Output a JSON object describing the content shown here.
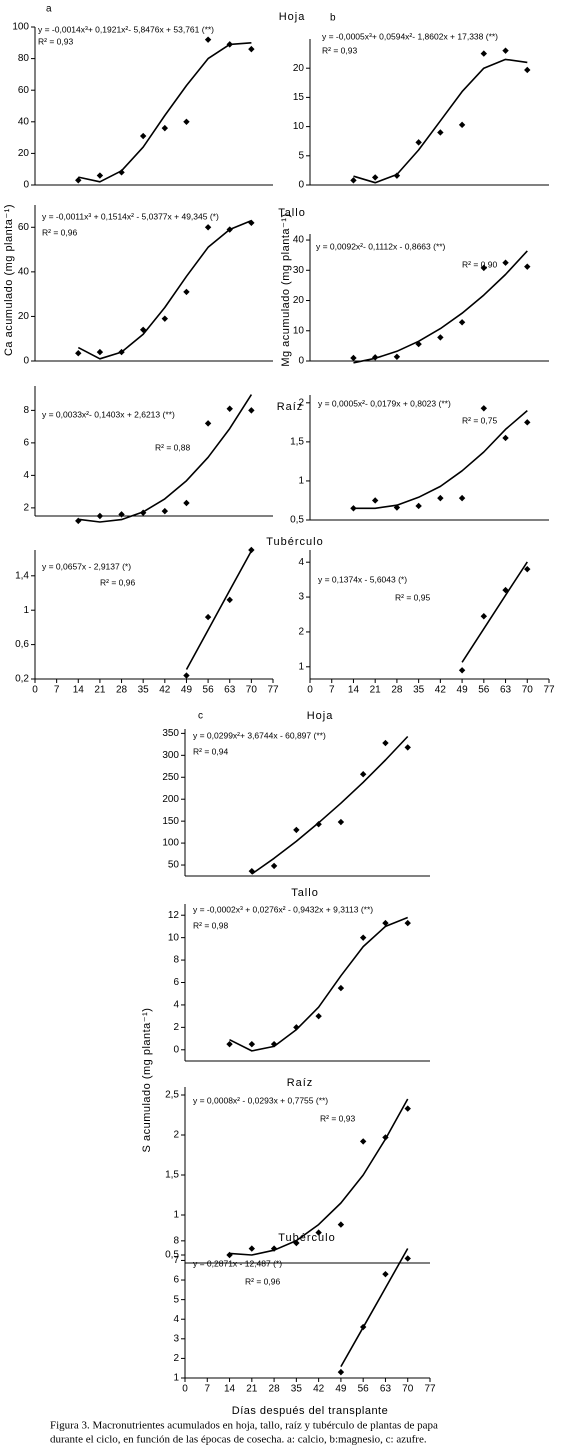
{
  "panel_labels": {
    "a": "a",
    "b": "b",
    "c": "c"
  },
  "y_axis_labels": [
    "Ca acumulado (mg planta⁻¹)",
    "Mg acumulado (mg planta⁻¹)",
    "S acumulado (mg planta⁻¹)"
  ],
  "x_axis_label": "Días después del transplante",
  "caption": [
    "Figura 3. Macronutrientes acumulados en hoja, tallo, raíz y tubérculo de plantas de papa",
    "durante el ciclo, en función de las épocas de cosecha. a: calcio, b:magnesio, c: azufre."
  ],
  "chart_data": [
    {
      "type": "scatter",
      "title": "Hoja",
      "x": [
        14,
        21,
        28,
        35,
        42,
        49,
        56,
        63,
        70
      ],
      "values": [
        3,
        6,
        8,
        31,
        36,
        40,
        92,
        89,
        86
      ],
      "fit": {
        "values": [
          5,
          2,
          9,
          24,
          44,
          63,
          80,
          89,
          90
        ]
      },
      "color": "#000000",
      "xlim": [
        0,
        77
      ],
      "ylim": [
        0,
        100
      ],
      "yticks": [
        0,
        20,
        40,
        60,
        80,
        100
      ],
      "equation": "y = -0,0014x³+ 0,1921x²- 5,8476x + 53,761 (**)",
      "r2": "R² = 0,93"
    },
    {
      "type": "scatter",
      "x": [
        14,
        21,
        28,
        35,
        42,
        49,
        56,
        63,
        70
      ],
      "values": [
        0.8,
        1.3,
        1.6,
        7.3,
        9,
        10.3,
        22.5,
        23,
        19.7
      ],
      "fit": {
        "values": [
          1.5,
          0.4,
          1.8,
          6,
          11,
          16,
          20,
          21.5,
          21
        ]
      },
      "color": "#000000",
      "xlim": [
        0,
        77
      ],
      "ylim": [
        0,
        25
      ],
      "yticks": [
        0,
        5,
        10,
        15,
        20
      ],
      "equation": "y = -0,0005x³+ 0,0594x²- 1,8602x + 17,338 (**)",
      "r2": "R² = 0,93"
    },
    {
      "type": "scatter",
      "title": "Tallo",
      "x": [
        14,
        21,
        28,
        35,
        42,
        49,
        56,
        63,
        70
      ],
      "values": [
        3.5,
        4,
        4,
        14,
        19,
        31,
        60,
        59,
        62
      ],
      "fit": {
        "values": [
          6,
          1,
          4,
          12,
          24,
          38,
          51,
          59,
          63
        ]
      },
      "color": "#000000",
      "xlim": [
        0,
        77
      ],
      "ylim": [
        0,
        70
      ],
      "yticks": [
        0,
        20,
        40,
        60
      ],
      "equation": "y = -0,0011x³ + 0,1514x² - 5,0377x + 49,345 (*)",
      "r2": "R² = 0,96"
    },
    {
      "type": "scatter",
      "x": [
        14,
        21,
        28,
        35,
        42,
        49,
        56,
        63,
        70
      ],
      "values": [
        1,
        1.2,
        1.4,
        5.6,
        7.8,
        12.8,
        30.8,
        32.5,
        31.2
      ],
      "fit": {
        "values": [
          -0.6,
          0.9,
          3.2,
          6.5,
          10.7,
          15.8,
          21.8,
          28.6,
          36.4
        ]
      },
      "color": "#000000",
      "xlim": [
        0,
        77
      ],
      "ylim": [
        0,
        42
      ],
      "yticks": [
        0,
        10,
        20,
        30,
        40
      ],
      "equation": "y = 0,0092x²- 0,1112x - 0,8663 (**)",
      "r2": "R² = 0,90"
    },
    {
      "type": "scatter",
      "title": "Raíz",
      "x": [
        14,
        21,
        28,
        35,
        42,
        49,
        56,
        63,
        70
      ],
      "values": [
        1.2,
        1.5,
        1.6,
        1.7,
        1.8,
        2.3,
        7.2,
        8.1,
        8
      ],
      "fit": {
        "values": [
          1.3,
          1.13,
          1.28,
          1.75,
          2.55,
          3.67,
          5.11,
          6.88,
          8.97
        ]
      },
      "color": "#000000",
      "xlim": [
        0,
        77
      ],
      "ylim": [
        1.5,
        9.5
      ],
      "yticks": [
        2,
        4,
        6,
        8
      ],
      "equation": "y = 0,0033x²- 0,1403x + 2,6213 (**)",
      "r2": "R² = 0,88"
    },
    {
      "type": "scatter",
      "x": [
        14,
        21,
        28,
        35,
        42,
        49,
        56,
        63,
        70
      ],
      "values": [
        0.65,
        0.75,
        0.66,
        0.68,
        0.78,
        0.78,
        1.93,
        1.55,
        1.75
      ],
      "fit": {
        "values": [
          0.65,
          0.65,
          0.69,
          0.79,
          0.93,
          1.13,
          1.37,
          1.66,
          1.9
        ]
      },
      "color": "#000000",
      "xlim": [
        0,
        77
      ],
      "ylim": [
        0.5,
        2.1
      ],
      "yticks": [
        {
          "value": 0.5,
          "label": "0,5"
        },
        1,
        {
          "value": 1.5,
          "label": "1,5"
        },
        2
      ],
      "equation": "y = 0,0005x²- 0,0179x + 0,8023 (**)",
      "r2": "R² = 0,75"
    },
    {
      "type": "scatter",
      "title": "Tubérculo",
      "x": [
        49,
        56,
        63,
        70
      ],
      "values": [
        0.24,
        0.92,
        1.12,
        1.7
      ],
      "fit": {
        "values": [
          0.31,
          0.77,
          1.23,
          1.69
        ]
      },
      "color": "#000000",
      "xlim": [
        0,
        77
      ],
      "ylim": [
        0.2,
        1.7
      ],
      "yticks": [
        {
          "value": 0.2,
          "label": "0,2"
        },
        {
          "value": 0.6,
          "label": "0,6"
        },
        1,
        {
          "value": 1.4,
          "label": "1,4"
        }
      ],
      "xticks": [
        0,
        7,
        14,
        21,
        28,
        35,
        42,
        49,
        56,
        63,
        70,
        77
      ],
      "equation": "y = 0,0657x - 2,9137 (*)",
      "r2": "R² = 0,96"
    },
    {
      "type": "scatter",
      "x": [
        49,
        56,
        63,
        70
      ],
      "values": [
        0.9,
        2.45,
        3.2,
        3.8
      ],
      "fit": {
        "values": [
          1.13,
          2.09,
          3.05,
          4.01
        ]
      },
      "color": "#000000",
      "xlim": [
        0,
        77
      ],
      "ylim": [
        0.65,
        4.35
      ],
      "yticks": [
        1,
        2,
        3,
        4
      ],
      "xticks": [
        0,
        7,
        14,
        21,
        28,
        35,
        42,
        49,
        56,
        63,
        70,
        77
      ],
      "equation": "y = 0,1374x - 5,6043 (*)",
      "r2": "R² = 0,95"
    },
    {
      "type": "scatter",
      "title": "Hoja",
      "x": [
        21,
        28,
        35,
        42,
        49,
        56,
        63,
        70
      ],
      "values": [
        36,
        48,
        130,
        143,
        148,
        257,
        328,
        318
      ],
      "fit": {
        "values": [
          29.5,
          65.4,
          104.3,
          146.2,
          190.9,
          238.6,
          289.3,
          342.8
        ]
      },
      "color": "#000000",
      "xlim": [
        0,
        77
      ],
      "ylim": [
        25,
        360
      ],
      "yticks": [
        50,
        100,
        150,
        200,
        250,
        300,
        350
      ],
      "equation": "y = 0,0299x²+ 3,6744x - 60,897 (**)",
      "r2": "R² = 0,94"
    },
    {
      "type": "scatter",
      "title": "Tallo",
      "x": [
        14,
        21,
        28,
        35,
        42,
        49,
        56,
        63,
        70
      ],
      "values": [
        0.5,
        0.5,
        0.5,
        2,
        3,
        5.5,
        10,
        11.3,
        11.3
      ],
      "fit": {
        "values": [
          0.9,
          -0.1,
          0.3,
          1.8,
          3.8,
          6.6,
          9.2,
          11,
          11.8
        ]
      },
      "color": "#000000",
      "xlim": [
        0,
        77
      ],
      "ylim": [
        -1,
        13
      ],
      "yticks": [
        0,
        2,
        4,
        6,
        8,
        10,
        12
      ],
      "equation": "y = -0,0002x³ + 0,0276x² - 0,9432x + 9,3113 (**)",
      "r2": "R² = 0,98"
    },
    {
      "type": "scatter",
      "title": "Raíz",
      "x": [
        14,
        21,
        28,
        35,
        42,
        49,
        56,
        63,
        70
      ],
      "values": [
        0.5,
        0.58,
        0.58,
        0.65,
        0.78,
        0.88,
        1.92,
        1.97,
        2.33
      ],
      "fit": {
        "values": [
          0.52,
          0.5,
          0.56,
          0.68,
          0.88,
          1.15,
          1.5,
          1.95,
          2.45
        ]
      },
      "color": "#000000",
      "xlim": [
        0,
        77
      ],
      "ylim": [
        0.4,
        2.6
      ],
      "yticks": [
        {
          "value": 0.5,
          "label": "0,5"
        },
        1,
        {
          "value": 1.5,
          "label": "1,5"
        },
        2,
        {
          "value": 2.5,
          "label": "2,5"
        }
      ],
      "equation": "y = 0,0008x² - 0,0293x + 0,7755 (**)",
      "r2": "R² = 0,93"
    },
    {
      "type": "scatter",
      "title": "Tubérculo",
      "x": [
        49,
        56,
        63,
        70
      ],
      "values": [
        1.3,
        3.6,
        6.3,
        7.1
      ],
      "fit": {
        "values": [
          1.58,
          3.59,
          5.6,
          7.61
        ]
      },
      "color": "#000000",
      "xlim": [
        0,
        77
      ],
      "ylim": [
        1,
        8.4
      ],
      "yticks": [
        1,
        2,
        3,
        4,
        5,
        6,
        7,
        8
      ],
      "xticks": [
        0,
        7,
        14,
        21,
        28,
        35,
        42,
        49,
        56,
        63,
        70,
        77
      ],
      "equation": "y = 0,2871x - 12,487 (*)",
      "r2": "R² = 0,96"
    }
  ]
}
